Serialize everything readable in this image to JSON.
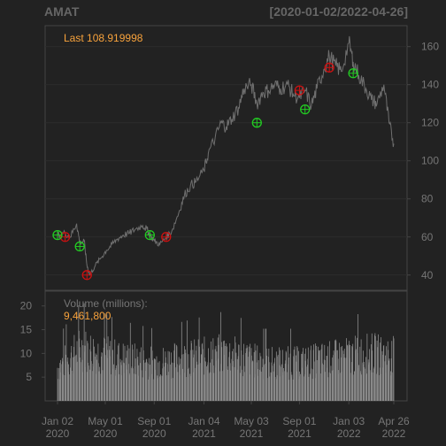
{
  "header": {
    "ticker": "AMAT",
    "range": "[2020-01-02/2022-04-26]"
  },
  "colors": {
    "background": "#222222",
    "panel_border": "#444444",
    "price_line": "#6f6f6f",
    "volume_bar": "#8a8a8a",
    "last_label": "#f7a23c",
    "buy_marker": "#22cc22",
    "sell_marker": "#cc1111",
    "axis_text": "#767676"
  },
  "chart_data": {
    "type": "line",
    "title": "AMAT",
    "date_range": "[2020-01-02/2022-04-26]",
    "last_label": "Last 108.919998",
    "price_ylim": [
      32,
      171
    ],
    "price_yticks": [
      40,
      60,
      80,
      100,
      120,
      140,
      160
    ],
    "grid": true,
    "x_ticks": [
      {
        "date": "2020-01-02",
        "line1": "Jan 02",
        "line2": "2020"
      },
      {
        "date": "2020-05-01",
        "line1": "May 01",
        "line2": "2020"
      },
      {
        "date": "2020-09-01",
        "line1": "Sep 01",
        "line2": "2020"
      },
      {
        "date": "2021-01-04",
        "line1": "Jan 04",
        "line2": "2021"
      },
      {
        "date": "2021-05-03",
        "line1": "May 03",
        "line2": "2021"
      },
      {
        "date": "2021-09-01",
        "line1": "Sep 01",
        "line2": "2021"
      },
      {
        "date": "2022-01-03",
        "line1": "Jan 03",
        "line2": "2022"
      },
      {
        "date": "2022-04-26",
        "line1": "Apr 26",
        "line2": "2022"
      }
    ],
    "price_series": {
      "x": [
        "2020-01-02",
        "2020-01-21",
        "2020-02-03",
        "2020-02-19",
        "2020-02-27",
        "2020-03-09",
        "2020-03-16",
        "2020-03-23",
        "2020-04-06",
        "2020-04-20",
        "2020-05-04",
        "2020-05-18",
        "2020-06-01",
        "2020-06-15",
        "2020-07-01",
        "2020-07-15",
        "2020-08-03",
        "2020-08-14",
        "2020-08-21",
        "2020-09-01",
        "2020-09-15",
        "2020-10-01",
        "2020-10-15",
        "2020-11-02",
        "2020-11-16",
        "2020-12-01",
        "2020-12-15",
        "2021-01-04",
        "2021-01-15",
        "2021-02-01",
        "2021-02-16",
        "2021-03-01",
        "2021-03-15",
        "2021-04-01",
        "2021-04-15",
        "2021-05-03",
        "2021-05-17",
        "2021-06-01",
        "2021-06-15",
        "2021-07-01",
        "2021-07-15",
        "2021-08-02",
        "2021-08-16",
        "2021-09-01",
        "2021-09-15",
        "2021-10-01",
        "2021-10-15",
        "2021-11-01",
        "2021-11-15",
        "2021-12-01",
        "2021-12-15",
        "2022-01-03",
        "2022-01-14",
        "2022-01-28",
        "2022-02-15",
        "2022-03-01",
        "2022-03-15",
        "2022-04-01",
        "2022-04-14",
        "2022-04-26"
      ],
      "values": [
        61,
        62,
        60,
        67,
        57,
        58,
        45,
        40,
        45,
        49,
        53,
        56,
        59,
        61,
        62,
        64,
        66,
        64,
        61,
        58,
        56,
        60,
        63,
        73,
        82,
        87,
        89,
        95,
        104,
        112,
        120,
        118,
        122,
        128,
        138,
        140,
        130,
        136,
        137,
        140,
        138,
        140,
        135,
        133,
        137,
        129,
        138,
        148,
        155,
        150,
        147,
        162,
        152,
        145,
        138,
        132,
        130,
        140,
        120,
        109
      ]
    },
    "signals": {
      "buy": [
        {
          "date": "2020-01-02",
          "price": 61
        },
        {
          "date": "2020-02-27",
          "price": 55
        },
        {
          "date": "2020-08-21",
          "price": 61
        },
        {
          "date": "2021-05-17",
          "price": 120
        },
        {
          "date": "2021-09-15",
          "price": 127
        },
        {
          "date": "2022-01-14",
          "price": 146
        }
      ],
      "sell": [
        {
          "date": "2020-01-21",
          "price": 60
        },
        {
          "date": "2020-03-16",
          "price": 40
        },
        {
          "date": "2020-10-01",
          "price": 60
        },
        {
          "date": "2021-09-01",
          "price": 137
        },
        {
          "date": "2021-11-15",
          "price": 149
        }
      ]
    },
    "volume": {
      "label": "Volume (millions):",
      "last_value": "9,461,800",
      "ylim": [
        0,
        22
      ],
      "yticks": [
        5,
        10,
        15,
        20
      ],
      "x": [
        "2020-01-02",
        "2020-03-01",
        "2020-06-01",
        "2020-09-01",
        "2020-12-01",
        "2021-03-01",
        "2021-06-01",
        "2021-09-01",
        "2021-12-01",
        "2022-03-01",
        "2022-04-26"
      ],
      "values": [
        7,
        11,
        9,
        8,
        9,
        10,
        8,
        8,
        9,
        10,
        9.5
      ]
    }
  }
}
